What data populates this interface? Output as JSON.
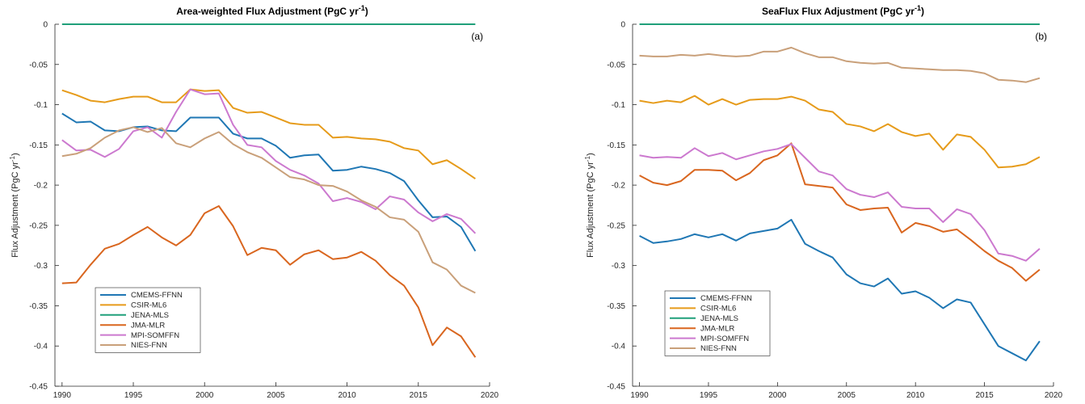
{
  "colors": {
    "CMEMS-FFNN": "#1f77b4",
    "CSIR-ML6": "#e69b1a",
    "JENA-MLS": "#20a07a",
    "JMA-MLR": "#d9661f",
    "MPI-SOMFFN": "#cc79cf",
    "NIES-FNN": "#c9a07a"
  },
  "chart_data": [
    {
      "type": "line",
      "panel_label": "(a)",
      "title_main": "Area-weighted Flux Adjustment (PgC yr",
      "title_sup": "-1",
      "title_end": ")",
      "ylabel_main": "Flux Adjustment (PgC yr",
      "ylabel_sup": "-1",
      "ylabel_end": ")",
      "xlim": [
        1989.5,
        2020
      ],
      "ylim": [
        -0.45,
        0
      ],
      "xticks": [
        1990,
        1995,
        2000,
        2005,
        2010,
        2015,
        2020
      ],
      "yticks": [
        0,
        -0.05,
        -0.1,
        -0.15,
        -0.2,
        -0.25,
        -0.3,
        -0.35,
        -0.4,
        -0.45
      ],
      "ytick_labels": [
        "0",
        "-0.05",
        "-0.1",
        "-0.15",
        "-0.2",
        "-0.25",
        "-0.3",
        "-0.35",
        "-0.4",
        "-0.45"
      ],
      "legend": "bottom-left",
      "x": [
        1990,
        1991,
        1992,
        1993,
        1994,
        1995,
        1996,
        1997,
        1998,
        1999,
        2000,
        2001,
        2002,
        2003,
        2004,
        2005,
        2006,
        2007,
        2008,
        2009,
        2010,
        2011,
        2012,
        2013,
        2014,
        2015,
        2016,
        2017,
        2018,
        2019
      ],
      "series": [
        {
          "name": "CMEMS-FFNN",
          "values": [
            -0.111,
            -0.122,
            -0.121,
            -0.132,
            -0.133,
            -0.128,
            -0.127,
            -0.132,
            -0.133,
            -0.116,
            -0.116,
            -0.116,
            -0.136,
            -0.142,
            -0.142,
            -0.151,
            -0.166,
            -0.163,
            -0.162,
            -0.182,
            -0.181,
            -0.177,
            -0.18,
            -0.185,
            -0.195,
            -0.219,
            -0.24,
            -0.239,
            -0.252,
            -0.282
          ]
        },
        {
          "name": "CSIR-ML6",
          "values": [
            -0.082,
            -0.088,
            -0.095,
            -0.097,
            -0.093,
            -0.09,
            -0.09,
            -0.097,
            -0.097,
            -0.081,
            -0.083,
            -0.082,
            -0.104,
            -0.11,
            -0.109,
            -0.116,
            -0.123,
            -0.125,
            -0.125,
            -0.141,
            -0.14,
            -0.142,
            -0.143,
            -0.146,
            -0.154,
            -0.157,
            -0.174,
            -0.169,
            -0.18,
            -0.192
          ]
        },
        {
          "name": "JENA-MLS",
          "values": [
            0,
            0,
            0,
            0,
            0,
            0,
            0,
            0,
            0,
            0,
            0,
            0,
            0,
            0,
            0,
            0,
            0,
            0,
            0,
            0,
            0,
            0,
            0,
            0,
            0,
            0,
            0,
            0,
            0,
            0
          ]
        },
        {
          "name": "JMA-MLR",
          "values": [
            -0.322,
            -0.321,
            -0.299,
            -0.279,
            -0.273,
            -0.262,
            -0.252,
            -0.265,
            -0.275,
            -0.262,
            -0.235,
            -0.226,
            -0.251,
            -0.287,
            -0.278,
            -0.281,
            -0.299,
            -0.286,
            -0.281,
            -0.292,
            -0.29,
            -0.283,
            -0.294,
            -0.312,
            -0.325,
            -0.352,
            -0.399,
            -0.377,
            -0.388,
            -0.414
          ]
        },
        {
          "name": "MPI-SOMFFN",
          "values": [
            -0.144,
            -0.157,
            -0.156,
            -0.165,
            -0.155,
            -0.133,
            -0.128,
            -0.141,
            -0.109,
            -0.081,
            -0.087,
            -0.086,
            -0.125,
            -0.15,
            -0.153,
            -0.17,
            -0.181,
            -0.188,
            -0.198,
            -0.22,
            -0.216,
            -0.221,
            -0.23,
            -0.214,
            -0.218,
            -0.234,
            -0.245,
            -0.236,
            -0.242,
            -0.26
          ]
        },
        {
          "name": "NIES-FNN",
          "values": [
            -0.164,
            -0.161,
            -0.154,
            -0.141,
            -0.132,
            -0.128,
            -0.134,
            -0.129,
            -0.148,
            -0.153,
            -0.142,
            -0.134,
            -0.149,
            -0.159,
            -0.166,
            -0.178,
            -0.19,
            -0.193,
            -0.2,
            -0.201,
            -0.208,
            -0.219,
            -0.227,
            -0.24,
            -0.243,
            -0.258,
            -0.296,
            -0.305,
            -0.325,
            -0.334
          ]
        }
      ]
    },
    {
      "type": "line",
      "panel_label": "(b)",
      "title_main": "SeaFlux Flux Adjustment (PgC yr",
      "title_sup": "-1",
      "title_end": ")",
      "ylabel_main": "Flux Adjustment (PgC yr",
      "ylabel_sup": "-1",
      "ylabel_end": ")",
      "xlim": [
        1989.5,
        2020
      ],
      "ylim": [
        -0.45,
        0
      ],
      "xticks": [
        1990,
        1995,
        2000,
        2005,
        2010,
        2015,
        2020
      ],
      "yticks": [
        0,
        -0.05,
        -0.1,
        -0.15,
        -0.2,
        -0.25,
        -0.3,
        -0.35,
        -0.4,
        -0.45
      ],
      "ytick_labels": [
        "0",
        "-0.05",
        "-0.1",
        "-0.15",
        "-0.2",
        "-0.25",
        "-0.3",
        "-0.35",
        "-0.4",
        "-0.45"
      ],
      "legend": "bottom-left",
      "x": [
        1990,
        1991,
        1992,
        1993,
        1994,
        1995,
        1996,
        1997,
        1998,
        1999,
        2000,
        2001,
        2002,
        2003,
        2004,
        2005,
        2006,
        2007,
        2008,
        2009,
        2010,
        2011,
        2012,
        2013,
        2014,
        2015,
        2016,
        2017,
        2018,
        2019
      ],
      "series": [
        {
          "name": "CMEMS-FFNN",
          "values": [
            -0.263,
            -0.272,
            -0.27,
            -0.267,
            -0.261,
            -0.265,
            -0.261,
            -0.269,
            -0.26,
            -0.257,
            -0.254,
            -0.243,
            -0.273,
            -0.282,
            -0.29,
            -0.311,
            -0.322,
            -0.326,
            -0.316,
            -0.335,
            -0.332,
            -0.34,
            -0.353,
            -0.342,
            -0.346,
            -0.373,
            -0.4,
            -0.409,
            -0.418,
            -0.394
          ]
        },
        {
          "name": "CSIR-ML6",
          "values": [
            -0.095,
            -0.098,
            -0.095,
            -0.097,
            -0.089,
            -0.1,
            -0.093,
            -0.1,
            -0.094,
            -0.093,
            -0.093,
            -0.09,
            -0.095,
            -0.106,
            -0.109,
            -0.124,
            -0.127,
            -0.133,
            -0.124,
            -0.134,
            -0.139,
            -0.136,
            -0.156,
            -0.137,
            -0.14,
            -0.156,
            -0.178,
            -0.177,
            -0.174,
            -0.165
          ]
        },
        {
          "name": "JENA-MLS",
          "values": [
            0,
            0,
            0,
            0,
            0,
            0,
            0,
            0,
            0,
            0,
            0,
            0,
            0,
            0,
            0,
            0,
            0,
            0,
            0,
            0,
            0,
            0,
            0,
            0,
            0,
            0,
            0,
            0,
            0,
            0
          ]
        },
        {
          "name": "JMA-MLR",
          "values": [
            -0.188,
            -0.197,
            -0.2,
            -0.195,
            -0.181,
            -0.181,
            -0.182,
            -0.194,
            -0.185,
            -0.169,
            -0.163,
            -0.148,
            -0.199,
            -0.201,
            -0.203,
            -0.224,
            -0.231,
            -0.229,
            -0.228,
            -0.259,
            -0.247,
            -0.251,
            -0.258,
            -0.255,
            -0.268,
            -0.282,
            -0.294,
            -0.303,
            -0.319,
            -0.305
          ]
        },
        {
          "name": "MPI-SOMFFN",
          "values": [
            -0.163,
            -0.166,
            -0.165,
            -0.166,
            -0.154,
            -0.164,
            -0.16,
            -0.168,
            -0.163,
            -0.158,
            -0.155,
            -0.149,
            -0.166,
            -0.183,
            -0.188,
            -0.205,
            -0.212,
            -0.215,
            -0.209,
            -0.227,
            -0.229,
            -0.229,
            -0.246,
            -0.23,
            -0.236,
            -0.256,
            -0.285,
            -0.288,
            -0.294,
            -0.279
          ]
        },
        {
          "name": "NIES-FNN",
          "values": [
            -0.039,
            -0.04,
            -0.04,
            -0.038,
            -0.039,
            -0.037,
            -0.039,
            -0.04,
            -0.039,
            -0.034,
            -0.034,
            -0.029,
            -0.036,
            -0.041,
            -0.041,
            -0.046,
            -0.048,
            -0.049,
            -0.048,
            -0.054,
            -0.055,
            -0.056,
            -0.057,
            -0.057,
            -0.058,
            -0.061,
            -0.069,
            -0.07,
            -0.072,
            -0.067
          ]
        }
      ]
    }
  ]
}
